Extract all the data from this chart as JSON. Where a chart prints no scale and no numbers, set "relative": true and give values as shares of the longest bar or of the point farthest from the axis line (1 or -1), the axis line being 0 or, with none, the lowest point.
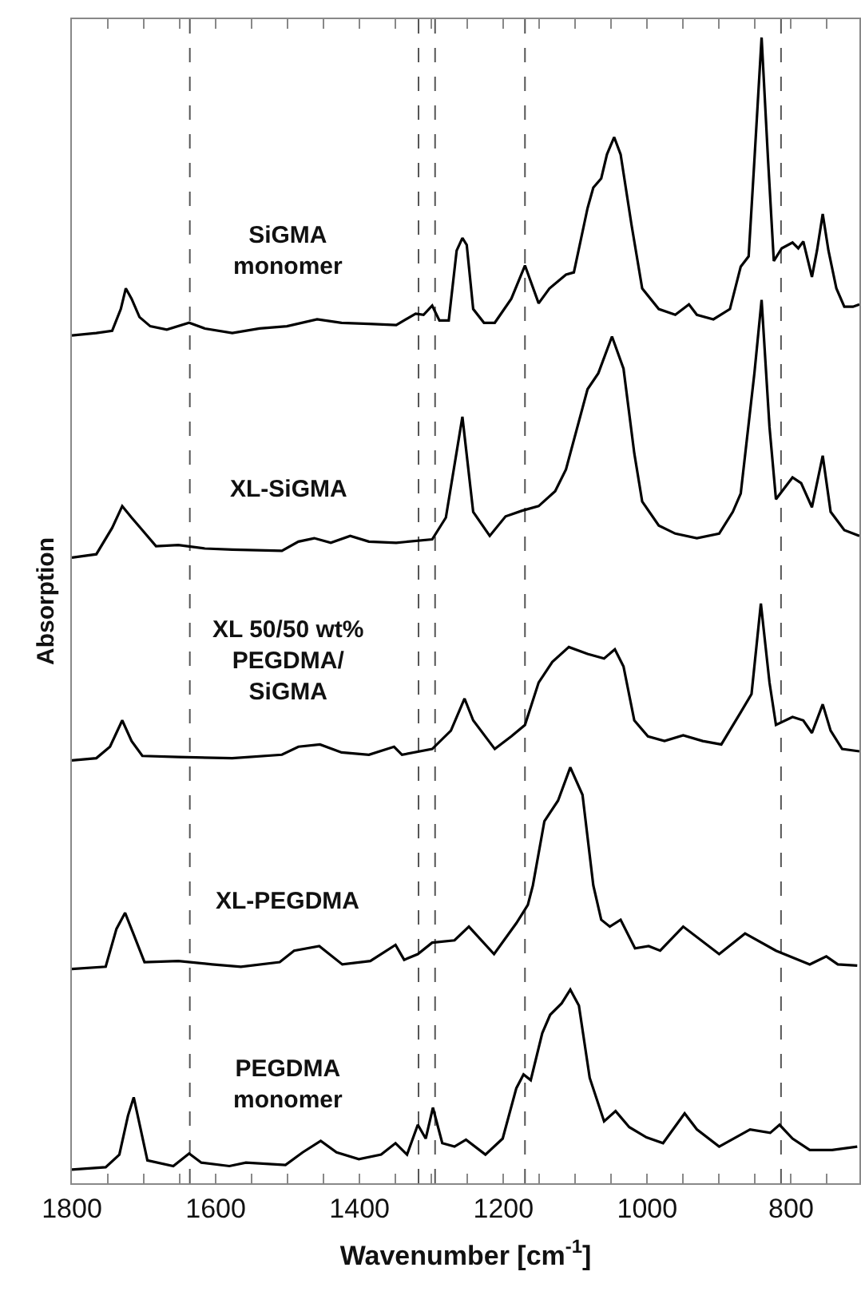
{
  "chart_data": {
    "type": "line",
    "relative": true,
    "xlabel": "Wavenumber [cm$^{-1}$]",
    "ylabel": "Absorption",
    "xlim": [
      1800,
      705
    ],
    "xticks": [
      1800,
      {
        "value": 1750,
        "label": null
      },
      {
        "value": 1700,
        "label": null
      },
      {
        "value": 1650,
        "label": null
      },
      1600,
      {
        "value": 1550,
        "label": null
      },
      {
        "value": 1500,
        "label": null
      },
      {
        "value": 1450,
        "label": null
      },
      1400,
      {
        "value": 1350,
        "label": null
      },
      {
        "value": 1300,
        "label": null
      },
      {
        "value": 1250,
        "label": null
      },
      1200,
      {
        "value": 1150,
        "label": null
      },
      {
        "value": 1100,
        "label": null
      },
      {
        "value": 1050,
        "label": null
      },
      1000,
      {
        "value": 950,
        "label": null
      },
      {
        "value": 900,
        "label": null
      },
      {
        "value": 850,
        "label": null
      },
      800,
      {
        "value": 750,
        "label": null
      }
    ],
    "legend": false,
    "marker": "none",
    "line_style": "solid",
    "ref_lines": [
      {
        "axis": "x",
        "value": 1636,
        "color": "#555555",
        "line_style": "dashed"
      },
      {
        "axis": "x",
        "value": 1318,
        "color": "#555555",
        "line_style": "dashed"
      },
      {
        "axis": "x",
        "value": 1295,
        "color": "#555555",
        "line_style": "dashed"
      },
      {
        "axis": "x",
        "value": 1170,
        "color": "#555555",
        "line_style": "dashed"
      },
      {
        "axis": "x",
        "value": 814,
        "color": "#555555",
        "line_style": "dashed"
      }
    ],
    "series": [
      {
        "name": "SiGMA\nmonomer",
        "color": "#000000",
        "x": [
          1800,
          1766,
          1744,
          1732,
          1725,
          1717,
          1706,
          1691,
          1668,
          1637,
          1615,
          1577,
          1539,
          1501,
          1459,
          1425,
          1387,
          1349,
          1322,
          1311,
          1299,
          1289,
          1276,
          1265,
          1257,
          1251,
          1242,
          1227,
          1212,
          1189,
          1170,
          1151,
          1136,
          1113,
          1102,
          1083,
          1075,
          1064,
          1056,
          1046,
          1037,
          1022,
          1007,
          984,
          961,
          942,
          931,
          908,
          885,
          870,
          859,
          851,
          841,
          832,
          824,
          813,
          798,
          790,
          783,
          771,
          764,
          756,
          748,
          737,
          726,
          714,
          705
        ],
        "values": [
          0.74,
          0.742,
          0.744,
          0.763,
          0.781,
          0.772,
          0.756,
          0.748,
          0.745,
          0.751,
          0.746,
          0.742,
          0.746,
          0.748,
          0.754,
          0.751,
          0.75,
          0.749,
          0.759,
          0.758,
          0.766,
          0.753,
          0.753,
          0.814,
          0.825,
          0.819,
          0.763,
          0.751,
          0.751,
          0.772,
          0.801,
          0.768,
          0.781,
          0.793,
          0.795,
          0.851,
          0.869,
          0.877,
          0.898,
          0.913,
          0.898,
          0.837,
          0.781,
          0.763,
          0.758,
          0.767,
          0.758,
          0.754,
          0.763,
          0.8,
          0.809,
          0.893,
          1.0,
          0.893,
          0.805,
          0.816,
          0.821,
          0.816,
          0.822,
          0.791,
          0.814,
          0.846,
          0.814,
          0.781,
          0.765,
          0.765,
          0.767
        ]
      },
      {
        "name": "XL-SiGMA",
        "color": "#000000",
        "x": [
          1800,
          1766,
          1744,
          1730,
          1717,
          1702,
          1683,
          1652,
          1615,
          1577,
          1508,
          1485,
          1463,
          1440,
          1413,
          1387,
          1349,
          1299,
          1280,
          1257,
          1242,
          1219,
          1197,
          1174,
          1151,
          1128,
          1113,
          1083,
          1068,
          1049,
          1033,
          1018,
          1007,
          984,
          961,
          931,
          900,
          881,
          870,
          851,
          841,
          830,
          821,
          798,
          786,
          771,
          756,
          745,
          726,
          705
        ],
        "values": [
          0.546,
          0.549,
          0.572,
          0.591,
          0.581,
          0.57,
          0.556,
          0.557,
          0.554,
          0.553,
          0.552,
          0.56,
          0.563,
          0.559,
          0.565,
          0.56,
          0.559,
          0.562,
          0.581,
          0.669,
          0.586,
          0.565,
          0.582,
          0.587,
          0.591,
          0.604,
          0.623,
          0.693,
          0.707,
          0.739,
          0.711,
          0.637,
          0.595,
          0.574,
          0.567,
          0.563,
          0.567,
          0.586,
          0.602,
          0.707,
          0.771,
          0.66,
          0.597,
          0.616,
          0.611,
          0.59,
          0.635,
          0.586,
          0.57,
          0.565
        ]
      },
      {
        "name": "XL 50/50 wt%\nPEGDMA/\nSiGMA",
        "color": "#000000",
        "x": [
          1800,
          1766,
          1747,
          1730,
          1717,
          1702,
          1652,
          1577,
          1508,
          1485,
          1455,
          1425,
          1387,
          1352,
          1341,
          1299,
          1273,
          1254,
          1242,
          1212,
          1189,
          1170,
          1151,
          1132,
          1109,
          1083,
          1060,
          1045,
          1033,
          1018,
          999,
          976,
          950,
          923,
          897,
          870,
          855,
          842,
          830,
          821,
          798,
          783,
          771,
          756,
          745,
          729,
          705
        ],
        "values": [
          0.369,
          0.371,
          0.381,
          0.404,
          0.386,
          0.373,
          0.372,
          0.371,
          0.374,
          0.381,
          0.383,
          0.376,
          0.374,
          0.381,
          0.374,
          0.379,
          0.395,
          0.423,
          0.404,
          0.379,
          0.39,
          0.4,
          0.437,
          0.455,
          0.468,
          0.462,
          0.458,
          0.466,
          0.451,
          0.404,
          0.39,
          0.386,
          0.391,
          0.386,
          0.383,
          0.411,
          0.427,
          0.506,
          0.437,
          0.4,
          0.407,
          0.404,
          0.393,
          0.418,
          0.395,
          0.379,
          0.377
        ]
      },
      {
        "name": "XL-PEGDMA",
        "color": "#000000",
        "x": [
          1800,
          1753,
          1738,
          1726,
          1714,
          1699,
          1652,
          1605,
          1565,
          1511,
          1491,
          1456,
          1424,
          1385,
          1350,
          1338,
          1319,
          1299,
          1268,
          1248,
          1213,
          1182,
          1166,
          1159,
          1143,
          1124,
          1107,
          1090,
          1075,
          1064,
          1052,
          1037,
          1017,
          998,
          982,
          950,
          900,
          864,
          821,
          774,
          751,
          735,
          708
        ],
        "values": [
          0.187,
          0.189,
          0.222,
          0.236,
          0.217,
          0.193,
          0.194,
          0.191,
          0.189,
          0.193,
          0.203,
          0.207,
          0.191,
          0.194,
          0.208,
          0.195,
          0.2,
          0.21,
          0.212,
          0.224,
          0.2,
          0.227,
          0.243,
          0.26,
          0.316,
          0.334,
          0.363,
          0.339,
          0.26,
          0.23,
          0.224,
          0.23,
          0.205,
          0.207,
          0.203,
          0.224,
          0.2,
          0.218,
          0.203,
          0.191,
          0.198,
          0.191,
          0.19
        ]
      },
      {
        "name": "PEGDMA\nmonomer",
        "color": "#000000",
        "x": [
          1800,
          1753,
          1734,
          1722,
          1714,
          1705,
          1695,
          1659,
          1637,
          1620,
          1581,
          1558,
          1503,
          1479,
          1454,
          1432,
          1401,
          1370,
          1350,
          1334,
          1319,
          1308,
          1298,
          1285,
          1268,
          1252,
          1225,
          1201,
          1182,
          1172,
          1162,
          1146,
          1135,
          1119,
          1107,
          1095,
          1080,
          1060,
          1044,
          1025,
          1001,
          978,
          948,
          931,
          900,
          857,
          829,
          816,
          798,
          774,
          743,
          708
        ],
        "values": [
          0.012,
          0.014,
          0.025,
          0.059,
          0.075,
          0.049,
          0.02,
          0.015,
          0.026,
          0.018,
          0.015,
          0.018,
          0.016,
          0.027,
          0.037,
          0.027,
          0.021,
          0.025,
          0.035,
          0.025,
          0.051,
          0.039,
          0.066,
          0.035,
          0.032,
          0.038,
          0.025,
          0.039,
          0.083,
          0.095,
          0.09,
          0.131,
          0.147,
          0.157,
          0.169,
          0.155,
          0.092,
          0.054,
          0.063,
          0.049,
          0.04,
          0.035,
          0.061,
          0.047,
          0.032,
          0.047,
          0.044,
          0.051,
          0.039,
          0.029,
          0.029,
          0.032
        ]
      }
    ]
  }
}
